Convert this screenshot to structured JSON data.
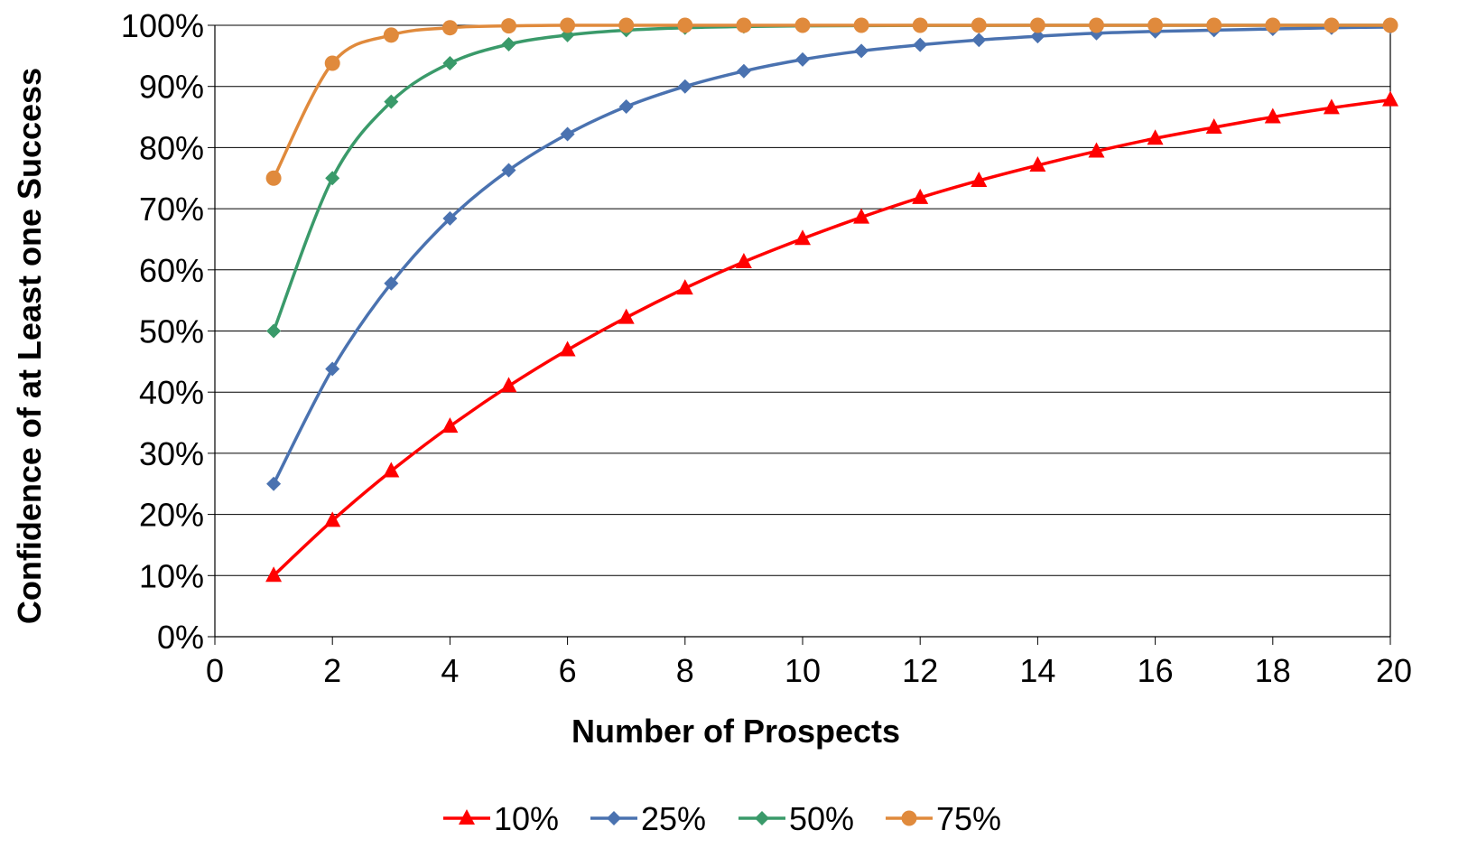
{
  "chart_data": {
    "type": "line",
    "title": "",
    "xlabel": "Number of Prospects",
    "ylabel": "Confidence of at Least one Success",
    "xlim": [
      0,
      20
    ],
    "ylim": [
      0,
      100
    ],
    "x_ticks": [
      "0",
      "2",
      "4",
      "6",
      "8",
      "10",
      "12",
      "14",
      "16",
      "18",
      "20"
    ],
    "y_ticks": [
      "0%",
      "10%",
      "20%",
      "30%",
      "40%",
      "50%",
      "60%",
      "70%",
      "80%",
      "90%",
      "100%"
    ],
    "grid": "horizontal",
    "legend_position": "bottom",
    "x": [
      1,
      2,
      3,
      4,
      5,
      6,
      7,
      8,
      9,
      10,
      11,
      12,
      13,
      14,
      15,
      16,
      17,
      18,
      19,
      20
    ],
    "series": [
      {
        "name": "10%",
        "color": "#ff0000",
        "marker": "triangle",
        "values": [
          10,
          19,
          27.1,
          34.4,
          41,
          46.9,
          52.2,
          57,
          61.3,
          65.1,
          68.6,
          71.8,
          74.6,
          77.1,
          79.4,
          81.5,
          83.3,
          85,
          86.5,
          87.8
        ]
      },
      {
        "name": "25%",
        "color": "#4a72b0",
        "marker": "diamond",
        "values": [
          25,
          43.8,
          57.8,
          68.4,
          76.3,
          82.2,
          86.7,
          90,
          92.5,
          94.4,
          95.8,
          96.8,
          97.6,
          98.2,
          98.7,
          99,
          99.2,
          99.4,
          99.6,
          99.7
        ]
      },
      {
        "name": "50%",
        "color": "#3a9a6a",
        "marker": "diamond",
        "values": [
          50,
          75,
          87.5,
          93.8,
          96.9,
          98.4,
          99.2,
          99.6,
          99.8,
          99.9,
          99.95,
          99.98,
          99.99,
          100,
          100,
          100,
          100,
          100,
          100,
          100
        ]
      },
      {
        "name": "75%",
        "color": "#e08a3c",
        "marker": "circle",
        "values": [
          75,
          93.8,
          98.4,
          99.6,
          99.9,
          100,
          100,
          100,
          100,
          100,
          100,
          100,
          100,
          100,
          100,
          100,
          100,
          100,
          100,
          100
        ]
      }
    ]
  }
}
